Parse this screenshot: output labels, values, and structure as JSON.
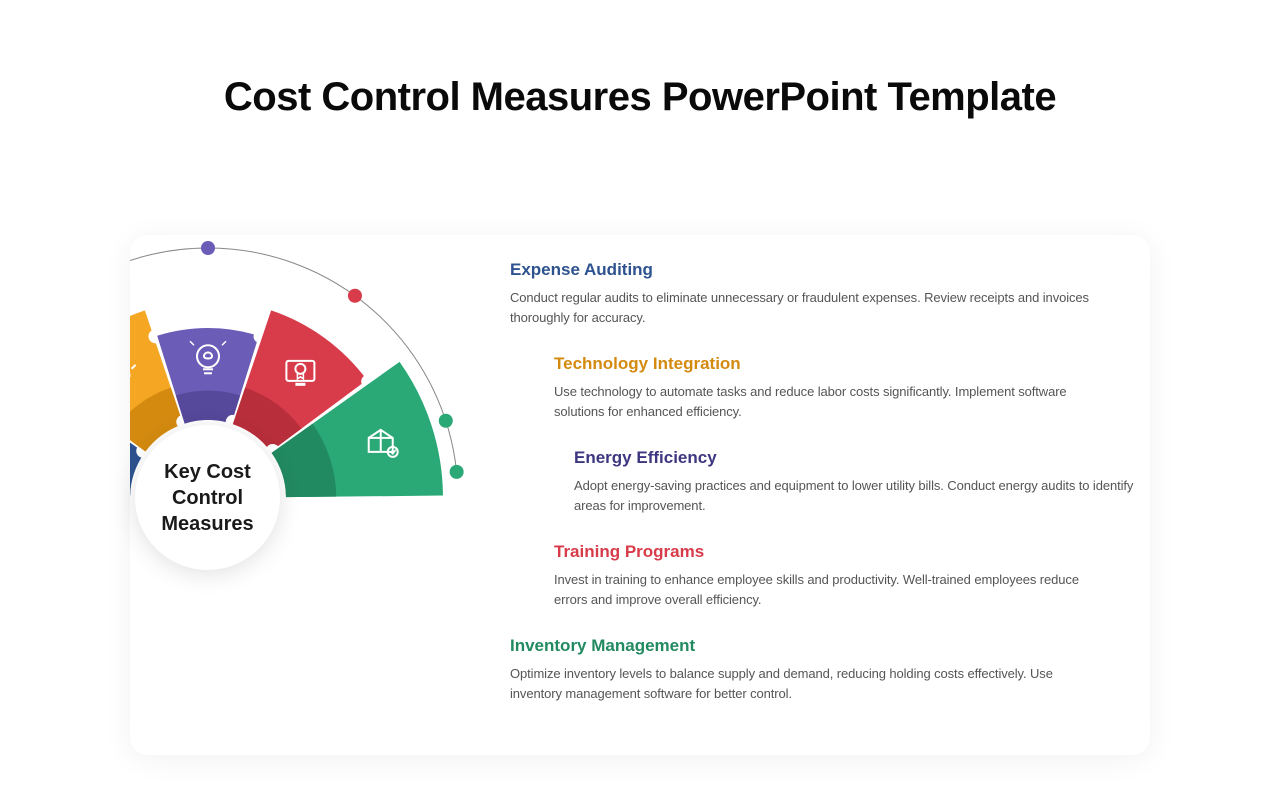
{
  "title": "Cost Control Measures PowerPoint Template",
  "center_label": "Key Cost Control Measures",
  "segments": [
    {
      "color": "#3968b3",
      "color_dark": "#2d528f",
      "title_color": "#2d528f",
      "heading": "Expense Auditing",
      "body": "Conduct regular audits to eliminate unnecessary or fraudulent expenses. Review receipts and invoices thoroughly for accuracy."
    },
    {
      "color": "#f5a623",
      "color_dark": "#d48a0f",
      "title_color": "#d48a0f",
      "heading": "Technology Integration",
      "body": "Use technology to automate tasks and reduce labor costs significantly. Implement software solutions for enhanced efficiency."
    },
    {
      "color": "#6b5cb8",
      "color_dark": "#56489a",
      "title_color": "#3d3680",
      "heading": "Energy Efficiency",
      "body": "Adopt energy-saving practices and equipment to lower utility bills. Conduct energy audits to identify areas for improvement."
    },
    {
      "color": "#d83b4a",
      "color_dark": "#b82e3b",
      "title_color": "#d83b4a",
      "heading": "Training Programs",
      "body": "Invest in training to enhance employee skills and productivity. Well-trained employees reduce errors and improve overall efficiency."
    },
    {
      "color": "#2aa876",
      "color_dark": "#228a60",
      "title_color": "#228a60",
      "heading": "Inventory Management",
      "body": "Optimize inventory levels to balance supply and demand, reducing holding costs effectively. Use inventory management software for better control."
    }
  ],
  "outer_ring_color": "#888888",
  "dot_fill": "#ffffff",
  "background": "#ffffff"
}
